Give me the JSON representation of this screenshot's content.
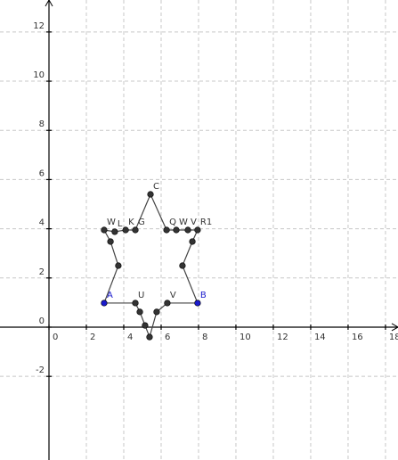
{
  "chart_data": {
    "type": "scatter",
    "xlim": [
      -2.62,
      18.67
    ],
    "ylim": [
      -5.4,
      13.3
    ],
    "xticks": [
      0,
      2,
      4,
      6,
      8,
      10,
      12,
      14,
      16,
      18
    ],
    "yticks": [
      -2,
      0,
      2,
      4,
      6,
      8,
      10,
      12
    ],
    "grid": true,
    "closed": true,
    "series": [
      {
        "x": [
          2.95,
          3.71,
          3.29,
          2.95,
          3.52,
          4.1,
          4.62,
          5.43,
          6.29,
          6.81,
          7.43,
          7.95,
          7.67,
          7.14,
          7.95,
          6.33,
          5.76,
          5.38,
          5.14,
          4.86,
          4.62
        ],
        "y": [
          0.98,
          2.5,
          3.48,
          3.95,
          3.88,
          3.95,
          3.95,
          5.4,
          3.95,
          3.95,
          3.95,
          3.95,
          3.48,
          2.5,
          0.98,
          0.98,
          0.62,
          -0.4,
          0.07,
          0.62,
          0.98
        ],
        "labels": [
          "A",
          null,
          null,
          "W",
          "L",
          "K",
          "G",
          "C",
          "Q",
          "W",
          "V",
          "R1",
          null,
          null,
          "B",
          "V",
          null,
          null,
          null,
          null,
          "U"
        ],
        "colors": [
          "#1a1acc",
          "#333333",
          "#333333",
          "#333333",
          "#333333",
          "#333333",
          "#333333",
          "#333333",
          "#333333",
          "#333333",
          "#333333",
          "#333333",
          "#333333",
          "#333333",
          "#1a1acc",
          "#333333",
          "#333333",
          "#333333",
          "#333333",
          "#333333",
          "#333333"
        ]
      }
    ]
  }
}
